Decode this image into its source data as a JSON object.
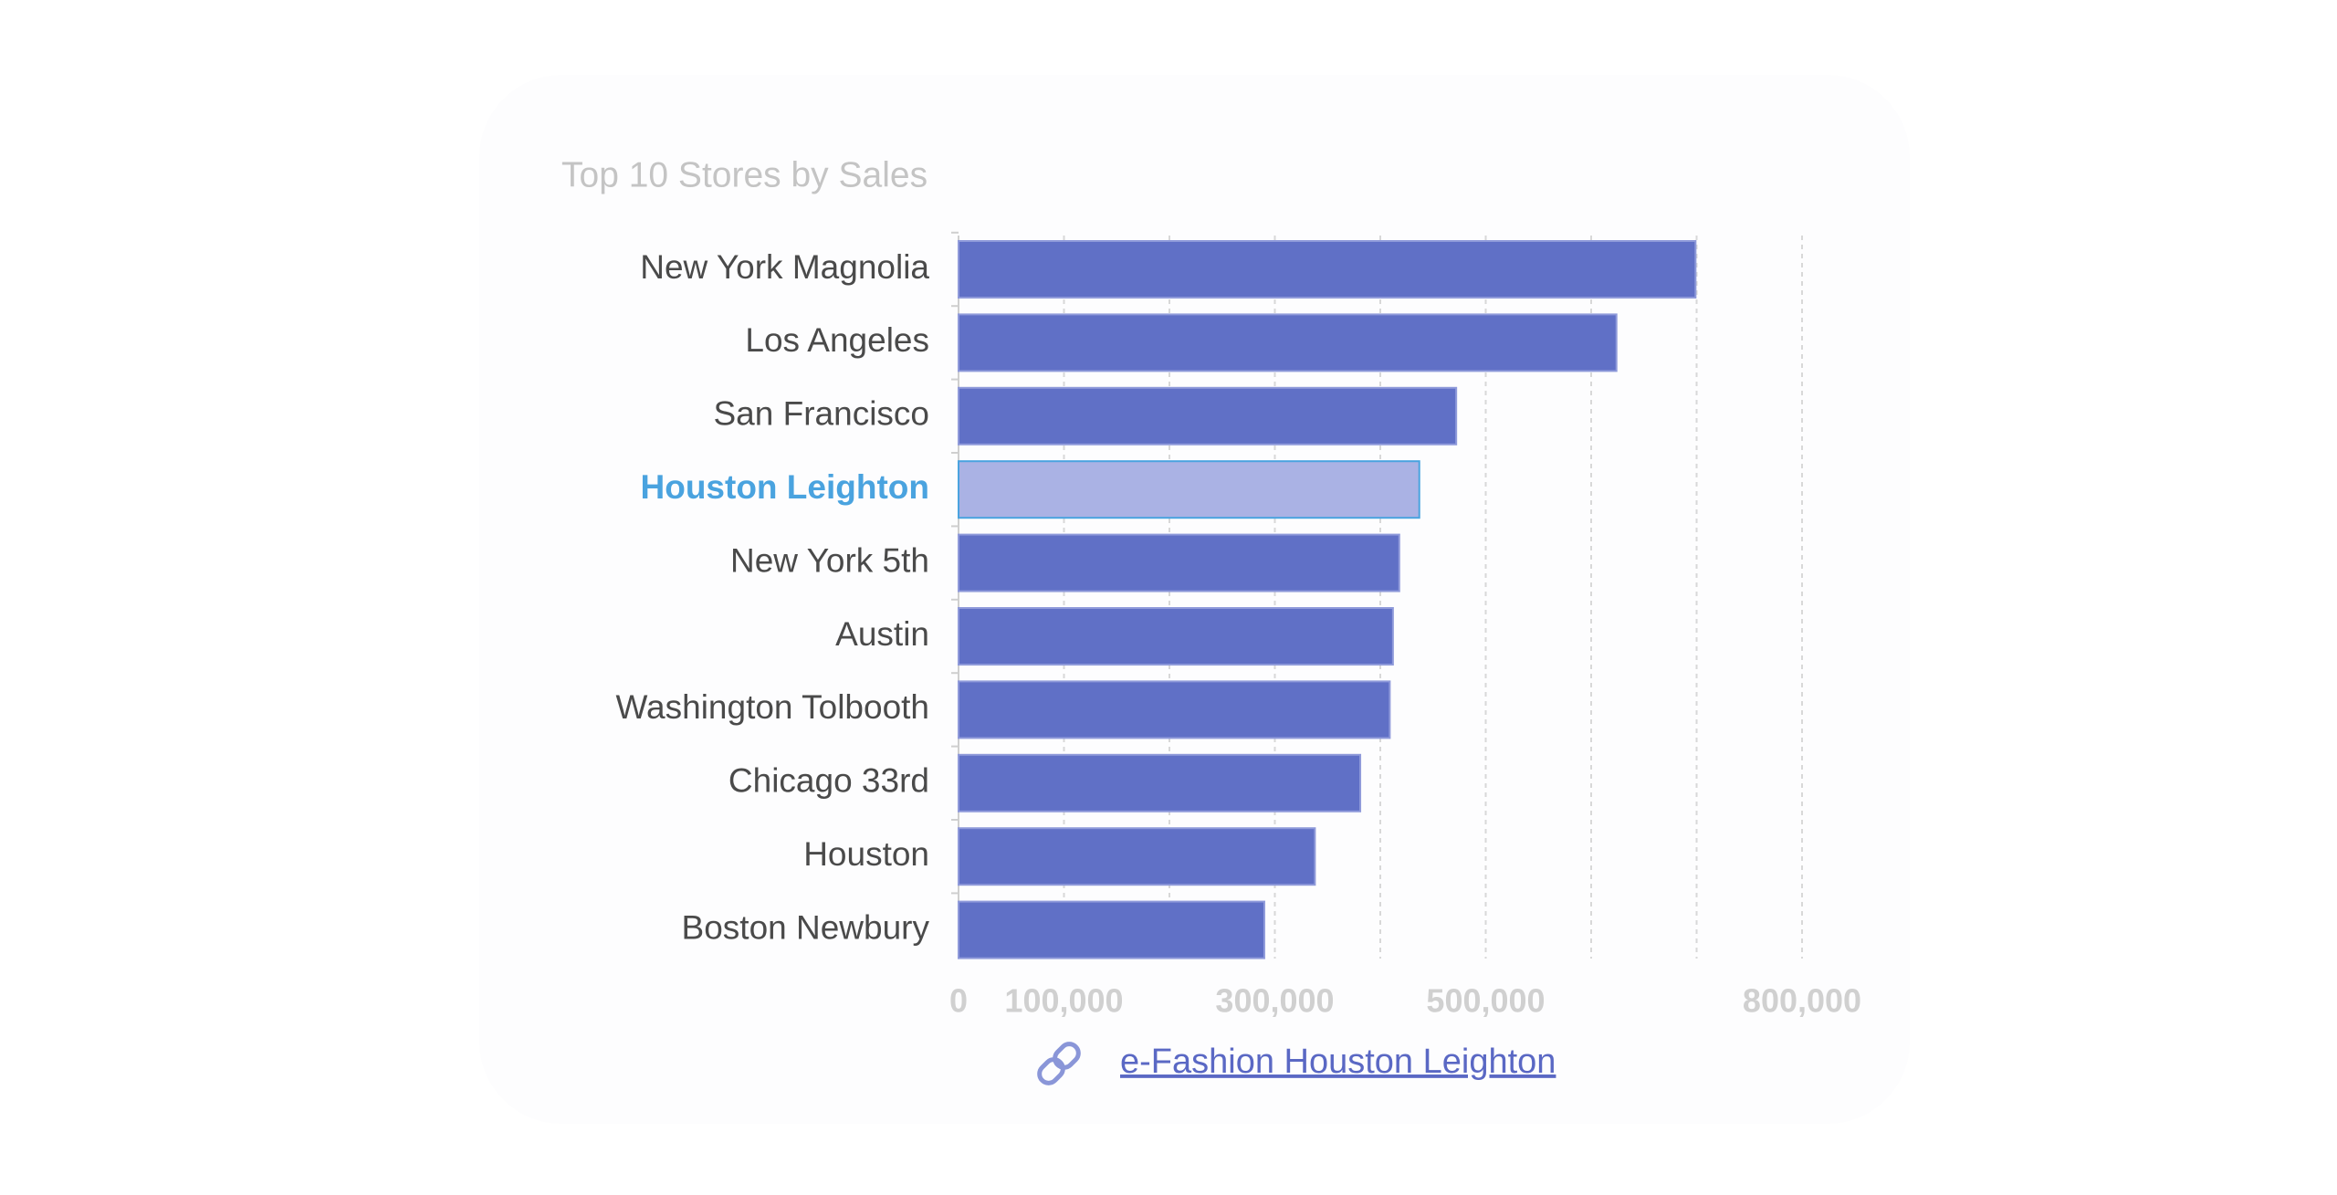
{
  "chart_data": {
    "type": "bar",
    "orientation": "horizontal",
    "title": "Top 10 Stores by Sales",
    "categories": [
      "New York Magnolia",
      "Los Angeles",
      "San Francisco",
      "Houston Leighton",
      "New York 5th",
      "Austin",
      "Washington Tolbooth",
      "Chicago 33rd",
      "Houston",
      "Boston Newbury"
    ],
    "values": [
      699000,
      624000,
      472000,
      437000,
      418000,
      412000,
      409000,
      381000,
      338000,
      290000
    ],
    "color": "#6070c6",
    "highlighted_category": 3,
    "highlight_color": "#aab2e4",
    "highlight_label_color": "#4aa3df",
    "xlim": [
      0,
      800000
    ],
    "xticks": [
      0,
      {
        "value": 100000,
        "label": "100,000"
      },
      {
        "value": 200000,
        "label": null
      },
      {
        "value": 300000,
        "label": "300,000"
      },
      {
        "value": 400000,
        "label": null
      },
      {
        "value": 500000,
        "label": "500,000"
      },
      {
        "value": 600000,
        "label": null
      },
      {
        "value": 700000,
        "label": null
      },
      {
        "value": 800000,
        "label": "800,000"
      }
    ],
    "grid": true
  },
  "link": {
    "text": "e-Fashion Houston Leighton"
  }
}
